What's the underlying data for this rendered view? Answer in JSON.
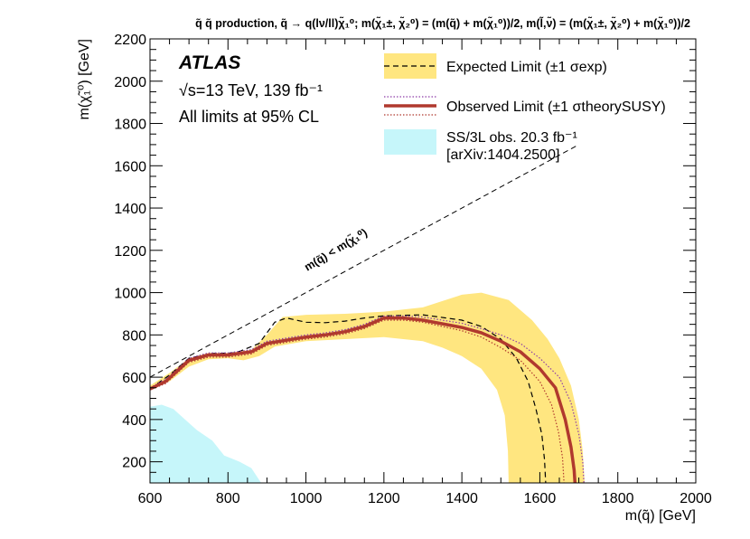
{
  "chart_data": {
    "type": "line",
    "title": "q̃ q̃ production, q̃ → q(lν/ll)χ̃₁⁰; m(χ̃₁±, χ̃₂⁰) = (m(q̃) + m(χ̃₁⁰))/2, m(l̃,ν̃) = (m(χ̃₁±, χ̃₂⁰) + m(χ̃₁⁰))/2",
    "xlabel": "m(q̃) [GeV]",
    "ylabel": "m(χ̃₁⁰) [GeV]",
    "xlim": [
      600,
      2000
    ],
    "ylim": [
      100,
      2200
    ],
    "xticks": [
      600,
      800,
      1000,
      1200,
      1400,
      1600,
      1800,
      2000
    ],
    "yticks": [
      200,
      400,
      600,
      800,
      1000,
      1200,
      1400,
      1600,
      1800,
      2000,
      2200
    ],
    "atlas_label": "ATLAS",
    "energy_label": "√s=13 TeV, 139 fb⁻¹",
    "cl_label": "All limits at 95% CL",
    "diagonal_label": "m(q̃) < m(χ̃₁⁰)",
    "legend": {
      "expected": "Expected Limit (±1 σexp)",
      "observed": "Observed Limit (±1 σtheorySUSY)",
      "previous_line1": "SS/3L obs. 20.3 fb⁻¹",
      "previous_line2": "[arXiv:1404.2500]"
    },
    "series": {
      "expected_band": {
        "upper": [
          [
            600,
            560
          ],
          [
            650,
            620
          ],
          [
            700,
            690
          ],
          [
            750,
            715
          ],
          [
            800,
            715
          ],
          [
            860,
            730
          ],
          [
            900,
            800
          ],
          [
            940,
            885
          ],
          [
            1000,
            895
          ],
          [
            1100,
            900
          ],
          [
            1200,
            910
          ],
          [
            1300,
            930
          ],
          [
            1350,
            960
          ],
          [
            1400,
            990
          ],
          [
            1450,
            1000
          ],
          [
            1520,
            965
          ],
          [
            1580,
            870
          ],
          [
            1620,
            780
          ],
          [
            1650,
            690
          ],
          [
            1680,
            560
          ],
          [
            1700,
            400
          ],
          [
            1710,
            250
          ],
          [
            1715,
            100
          ]
        ],
        "lower": [
          [
            1520,
            100
          ],
          [
            1518,
            250
          ],
          [
            1510,
            420
          ],
          [
            1490,
            540
          ],
          [
            1450,
            640
          ],
          [
            1400,
            700
          ],
          [
            1350,
            740
          ],
          [
            1300,
            770
          ],
          [
            1200,
            790
          ],
          [
            1100,
            780
          ],
          [
            1000,
            770
          ],
          [
            920,
            745
          ],
          [
            880,
            700
          ],
          [
            840,
            680
          ],
          [
            800,
            690
          ],
          [
            750,
            685
          ],
          [
            700,
            650
          ],
          [
            650,
            580
          ],
          [
            600,
            545
          ]
        ]
      },
      "expected": [
        [
          600,
          545
        ],
        [
          650,
          610
        ],
        [
          700,
          690
        ],
        [
          760,
          712
        ],
        [
          820,
          715
        ],
        [
          880,
          760
        ],
        [
          920,
          860
        ],
        [
          950,
          880
        ],
        [
          1000,
          860
        ],
        [
          1050,
          858
        ],
        [
          1100,
          865
        ],
        [
          1150,
          880
        ],
        [
          1200,
          890
        ],
        [
          1300,
          895
        ],
        [
          1400,
          870
        ],
        [
          1450,
          840
        ],
        [
          1500,
          780
        ],
        [
          1540,
          690
        ],
        [
          1570,
          580
        ],
        [
          1590,
          450
        ],
        [
          1605,
          330
        ],
        [
          1612,
          210
        ],
        [
          1615,
          100
        ]
      ],
      "observed": [
        [
          600,
          545
        ],
        [
          640,
          580
        ],
        [
          700,
          680
        ],
        [
          750,
          705
        ],
        [
          800,
          705
        ],
        [
          860,
          720
        ],
        [
          900,
          760
        ],
        [
          950,
          775
        ],
        [
          1000,
          790
        ],
        [
          1050,
          800
        ],
        [
          1100,
          815
        ],
        [
          1150,
          840
        ],
        [
          1200,
          880
        ],
        [
          1250,
          880
        ],
        [
          1300,
          870
        ],
        [
          1400,
          835
        ],
        [
          1450,
          810
        ],
        [
          1500,
          770
        ],
        [
          1550,
          720
        ],
        [
          1600,
          640
        ],
        [
          1640,
          550
        ],
        [
          1665,
          400
        ],
        [
          1680,
          270
        ],
        [
          1688,
          160
        ],
        [
          1690,
          100
        ]
      ],
      "observed_up": [
        [
          600,
          550
        ],
        [
          640,
          590
        ],
        [
          700,
          690
        ],
        [
          750,
          715
        ],
        [
          800,
          715
        ],
        [
          860,
          730
        ],
        [
          900,
          770
        ],
        [
          950,
          785
        ],
        [
          1000,
          800
        ],
        [
          1050,
          810
        ],
        [
          1100,
          825
        ],
        [
          1150,
          850
        ],
        [
          1200,
          890
        ],
        [
          1250,
          890
        ],
        [
          1300,
          885
        ],
        [
          1400,
          855
        ],
        [
          1450,
          830
        ],
        [
          1500,
          800
        ],
        [
          1550,
          760
        ],
        [
          1600,
          690
        ],
        [
          1650,
          600
        ],
        [
          1680,
          480
        ],
        [
          1700,
          330
        ],
        [
          1710,
          200
        ],
        [
          1713,
          100
        ]
      ],
      "observed_down": [
        [
          600,
          540
        ],
        [
          640,
          570
        ],
        [
          700,
          670
        ],
        [
          750,
          695
        ],
        [
          800,
          695
        ],
        [
          860,
          710
        ],
        [
          900,
          750
        ],
        [
          950,
          765
        ],
        [
          1000,
          780
        ],
        [
          1050,
          790
        ],
        [
          1100,
          805
        ],
        [
          1150,
          830
        ],
        [
          1200,
          870
        ],
        [
          1250,
          870
        ],
        [
          1300,
          860
        ],
        [
          1400,
          820
        ],
        [
          1450,
          790
        ],
        [
          1500,
          740
        ],
        [
          1550,
          680
        ],
        [
          1600,
          580
        ],
        [
          1630,
          470
        ],
        [
          1648,
          340
        ],
        [
          1658,
          220
        ],
        [
          1662,
          100
        ]
      ],
      "previous": [
        [
          600,
          100
        ],
        [
          600,
          460
        ],
        [
          630,
          470
        ],
        [
          660,
          450
        ],
        [
          690,
          400
        ],
        [
          720,
          350
        ],
        [
          760,
          300
        ],
        [
          790,
          230
        ],
        [
          830,
          200
        ],
        [
          860,
          170
        ],
        [
          885,
          100
        ]
      ],
      "diagonal": [
        [
          600,
          600
        ],
        [
          1700,
          1700
        ]
      ]
    }
  }
}
